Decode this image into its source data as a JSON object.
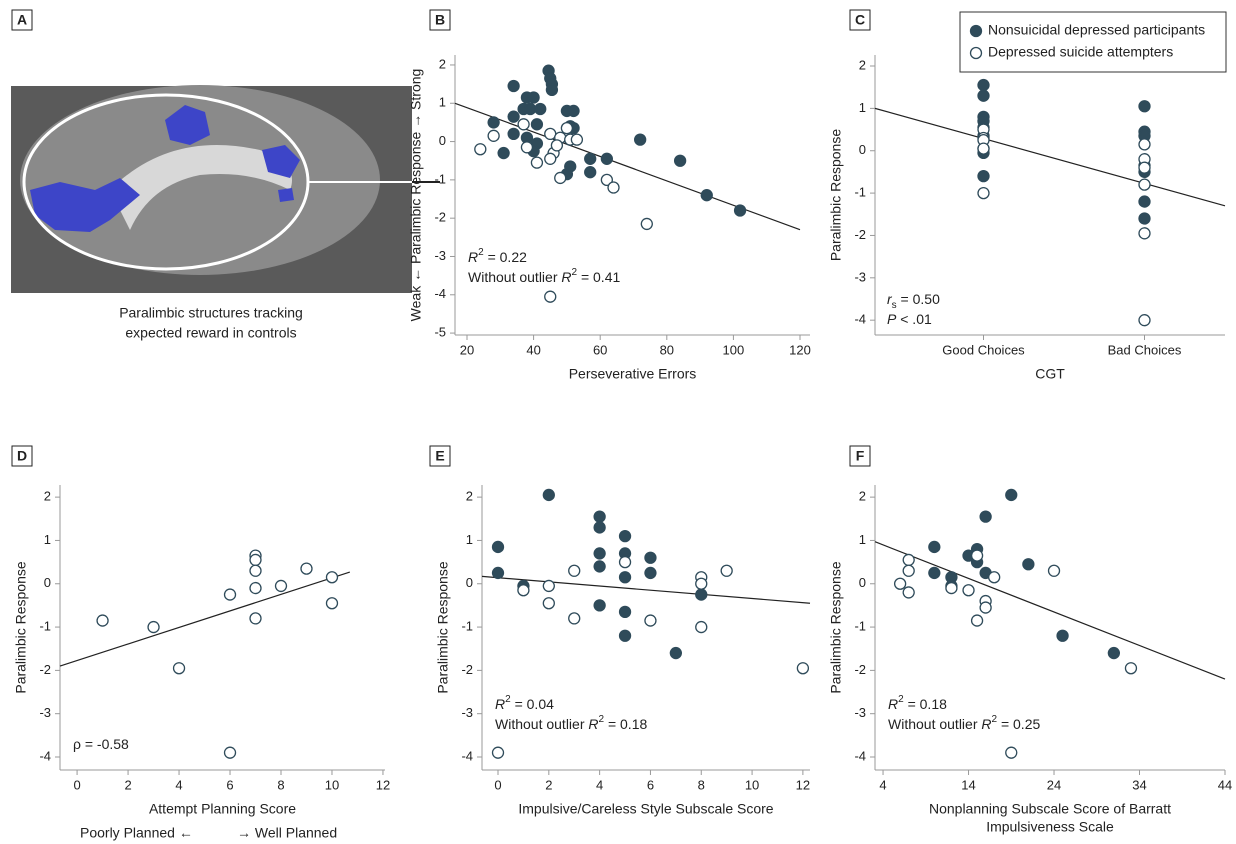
{
  "chart_data": [
    {
      "type": "image",
      "label": "A",
      "caption": [
        "Paralimbic structures tracking",
        "expected reward in controls"
      ]
    },
    {
      "type": "scatter",
      "label": "B",
      "xlabel": "Perseverative Errors",
      "ylabel": "Weak ← Paralimbic Response → Strong",
      "xlim": [
        16.4,
        123
      ],
      "ylim": [
        -5.05,
        2.26
      ],
      "xticks": [
        20,
        40,
        60,
        80,
        100,
        120
      ],
      "yticks": [
        -5,
        -4,
        -3,
        -2,
        -1,
        0,
        1,
        2
      ],
      "series": [
        {
          "style": "filled",
          "color": "#2f4b5a",
          "x": [
            44.5,
            45,
            45.5,
            45.5,
            34,
            38,
            40,
            37,
            39,
            42,
            50,
            52,
            34,
            41,
            28,
            51,
            52,
            34,
            38,
            41,
            31,
            40,
            51,
            50,
            57,
            62,
            57,
            72,
            84,
            92,
            102
          ],
          "values": [
            1.85,
            1.65,
            1.5,
            1.35,
            1.45,
            1.15,
            1.15,
            0.85,
            0.85,
            0.85,
            0.8,
            0.8,
            0.65,
            0.45,
            0.5,
            0.4,
            0.35,
            0.2,
            0.1,
            -0.05,
            -0.3,
            -0.25,
            -0.65,
            -0.85,
            -0.45,
            -0.45,
            -0.8,
            0.05,
            -0.5,
            -1.4,
            -1.8
          ]
        },
        {
          "style": "open",
          "color": "#2f4b5a",
          "x": [
            24,
            28,
            37,
            38,
            41,
            45,
            46,
            45,
            48,
            47,
            50,
            51,
            53,
            48,
            62,
            64,
            74,
            45
          ],
          "values": [
            -0.2,
            0.15,
            0.45,
            -0.15,
            -0.55,
            0.2,
            -0.3,
            -0.45,
            0.1,
            -0.1,
            0.35,
            0.05,
            0.05,
            -0.95,
            -1.0,
            -1.2,
            -2.15,
            -4.05
          ]
        }
      ],
      "fit": {
        "x": [
          16.4,
          120
        ],
        "y": [
          1.0,
          -2.3
        ]
      },
      "annotations": [
        [
          {
            "text": "R",
            "italic": true
          },
          {
            "text": "2",
            "sup": true
          },
          {
            "text": " = 0.22"
          }
        ],
        [
          {
            "text": "Without outlier "
          },
          {
            "text": "R",
            "italic": true
          },
          {
            "text": "2",
            "sup": true
          },
          {
            "text": " = 0.41"
          }
        ]
      ]
    },
    {
      "type": "scatter",
      "label": "C",
      "xlabel": "CGT",
      "ylabel": "Paralimbic Response",
      "categories": [
        "Good Choices",
        "Bad Choices"
      ],
      "ylim": [
        -4.35,
        2.26
      ],
      "yticks": [
        -4,
        -3,
        -2,
        -1,
        0,
        1,
        2
      ],
      "legend": "upper right",
      "series": [
        {
          "name": "Nonsuicidal depressed participants",
          "style": "filled",
          "color": "#2f4b5a",
          "x": [
            "Good Choices",
            "Good Choices",
            "Good Choices",
            "Good Choices",
            "Good Choices",
            "Good Choices",
            "Good Choices",
            "Good Choices",
            "Good Choices",
            "Bad Choices",
            "Bad Choices",
            "Bad Choices",
            "Bad Choices",
            "Bad Choices",
            "Bad Choices",
            "Bad Choices"
          ],
          "values": [
            1.55,
            1.3,
            0.8,
            0.7,
            0.55,
            0.35,
            0.05,
            -0.05,
            -0.6,
            1.05,
            0.45,
            0.35,
            -0.35,
            -0.5,
            -1.2,
            -1.6
          ]
        },
        {
          "name": "Depressed suicide attempters",
          "style": "open",
          "color": "#2f4b5a",
          "x": [
            "Good Choices",
            "Good Choices",
            "Good Choices",
            "Good Choices",
            "Good Choices",
            "Bad Choices",
            "Bad Choices",
            "Bad Choices",
            "Bad Choices",
            "Bad Choices",
            "Bad Choices"
          ],
          "values": [
            0.5,
            0.3,
            0.25,
            0.05,
            -1.0,
            0.15,
            -0.2,
            -0.4,
            -0.8,
            -1.95,
            -4.0
          ]
        }
      ],
      "fit": {
        "y": [
          1.0,
          -1.3
        ]
      },
      "annotations": [
        [
          {
            "text": "r",
            "italic": true
          },
          {
            "text": "s",
            "sub": true
          },
          {
            "text": " = 0.50"
          }
        ],
        [
          {
            "text": "P",
            "italic": true
          },
          {
            "text": " < .01"
          }
        ]
      ]
    },
    {
      "type": "scatter",
      "label": "D",
      "xlabel": "Attempt Planning Score",
      "ylabel": "Paralimbic Response",
      "xlim": [
        -0.67,
        12.08
      ],
      "ylim": [
        -4.3,
        2.28
      ],
      "xticks": [
        0,
        2,
        4,
        6,
        8,
        10,
        12
      ],
      "yticks": [
        -4,
        -3,
        -2,
        -1,
        0,
        1,
        2
      ],
      "series": [
        {
          "style": "open",
          "color": "#2f4b5a",
          "x": [
            1,
            3,
            4,
            6,
            6,
            7,
            7,
            7,
            7,
            7,
            8,
            9,
            10,
            10
          ],
          "values": [
            -0.85,
            -1.0,
            -1.95,
            -0.25,
            -3.9,
            0.65,
            0.55,
            0.3,
            -0.1,
            -0.8,
            -0.05,
            0.35,
            0.15,
            -0.45
          ]
        }
      ],
      "fit": {
        "x": [
          -0.67,
          10.7
        ],
        "y": [
          -1.9,
          0.27
        ]
      },
      "annotations": [
        [
          {
            "text": "ρ = -0.58"
          }
        ]
      ],
      "footnote": [
        "Poorly Planned ←",
        "→ Well Planned"
      ]
    },
    {
      "type": "scatter",
      "label": "E",
      "xlabel": "Impulsive/Careless Style Subscale Score",
      "ylabel": "Paralimbic Response",
      "xlim": [
        -0.63,
        12.28
      ],
      "ylim": [
        -4.3,
        2.28
      ],
      "xticks": [
        0,
        2,
        4,
        6,
        8,
        10,
        12
      ],
      "yticks": [
        -4,
        -3,
        -2,
        -1,
        0,
        1,
        2
      ],
      "series": [
        {
          "style": "filled",
          "color": "#2f4b5a",
          "x": [
            0,
            0,
            2,
            4,
            4,
            4,
            4,
            4,
            5,
            5,
            5,
            5,
            5,
            6,
            6,
            7,
            8,
            1
          ],
          "values": [
            0.85,
            0.25,
            2.05,
            1.55,
            1.3,
            0.7,
            0.4,
            -0.5,
            1.1,
            0.7,
            0.15,
            -0.65,
            -1.2,
            0.6,
            0.25,
            -1.6,
            -0.25,
            -0.05
          ]
        },
        {
          "style": "open",
          "color": "#2f4b5a",
          "x": [
            0,
            1,
            2,
            2,
            3,
            3,
            5,
            6,
            8,
            8,
            8,
            9,
            12
          ],
          "values": [
            -3.9,
            -0.15,
            -0.05,
            -0.45,
            0.3,
            -0.8,
            0.5,
            -0.85,
            0.15,
            0,
            -1.0,
            0.3,
            -1.95
          ]
        }
      ],
      "fit": {
        "x": [
          -0.63,
          12.28
        ],
        "y": [
          0.17,
          -0.45
        ]
      },
      "annotations": [
        [
          {
            "text": "R",
            "italic": true
          },
          {
            "text": "2",
            "sup": true
          },
          {
            "text": " = 0.04"
          }
        ],
        [
          {
            "text": "Without outlier "
          },
          {
            "text": "R",
            "italic": true
          },
          {
            "text": "2",
            "sup": true
          },
          {
            "text": " = 0.18"
          }
        ]
      ]
    },
    {
      "type": "scatter",
      "label": "F",
      "xlabel": [
        "Nonplanning Subscale Score of Barratt",
        "Impulsiveness Scale"
      ],
      "ylabel": "Paralimbic Response",
      "xlim": [
        3.06,
        44
      ],
      "ylim": [
        -4.3,
        2.28
      ],
      "xticks": [
        4,
        14,
        24,
        34,
        44
      ],
      "yticks": [
        -4,
        -3,
        -2,
        -1,
        0,
        1,
        2
      ],
      "series": [
        {
          "style": "filled",
          "color": "#2f4b5a",
          "x": [
            10,
            10,
            12,
            12,
            14,
            15,
            15,
            16,
            16,
            19,
            21,
            25,
            31
          ],
          "values": [
            0.85,
            0.25,
            0.15,
            -0.05,
            0.65,
            0.8,
            0.5,
            0.25,
            1.55,
            2.05,
            0.45,
            -1.2,
            -1.6
          ]
        },
        {
          "style": "open",
          "color": "#2f4b5a",
          "x": [
            6,
            7,
            7,
            7,
            12,
            14,
            15,
            15,
            16,
            16,
            17,
            24,
            33,
            19
          ],
          "values": [
            0,
            0.55,
            0.3,
            -0.2,
            -0.1,
            -0.15,
            0.65,
            -0.85,
            -0.4,
            -0.55,
            0.15,
            0.3,
            -1.95,
            -3.9
          ]
        }
      ],
      "fit": {
        "x": [
          3.06,
          44
        ],
        "y": [
          0.97,
          -2.2
        ]
      },
      "annotations": [
        [
          {
            "text": "R",
            "italic": true
          },
          {
            "text": "2",
            "sup": true
          },
          {
            "text": " = 0.18"
          }
        ],
        [
          {
            "text": "Without outlier "
          },
          {
            "text": "R",
            "italic": true
          },
          {
            "text": "2",
            "sup": true
          },
          {
            "text": " = 0.25"
          }
        ]
      ]
    }
  ]
}
